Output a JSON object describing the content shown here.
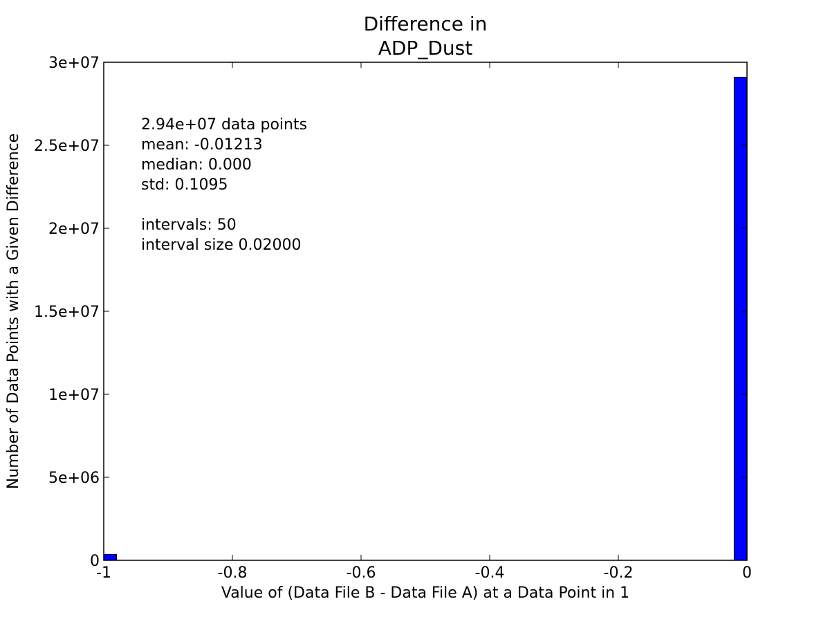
{
  "chart_data": {
    "type": "bar",
    "title_lines": [
      "Difference in",
      "ADP_Dust"
    ],
    "xlabel": "Value of (Data File B - Data File A) at a Data Point in 1",
    "ylabel": "Number of Data Points with a Given Difference",
    "xlim": [
      -1,
      0
    ],
    "ylim": [
      0,
      30000000
    ],
    "grid": false,
    "x_ticks": [
      {
        "value": -1,
        "label": "-1"
      },
      {
        "value": -0.8,
        "label": "-0.8"
      },
      {
        "value": -0.6,
        "label": "-0.6"
      },
      {
        "value": -0.4,
        "label": "-0.4"
      },
      {
        "value": -0.2,
        "label": "-0.2"
      },
      {
        "value": 0,
        "label": "0"
      }
    ],
    "y_ticks": [
      {
        "value": 0,
        "label": "0"
      },
      {
        "value": 5000000,
        "label": "5e+06"
      },
      {
        "value": 10000000,
        "label": "1e+07"
      },
      {
        "value": 15000000,
        "label": "1.5e+07"
      },
      {
        "value": 20000000,
        "label": "2e+07"
      },
      {
        "value": 25000000,
        "label": "2.5e+07"
      },
      {
        "value": 30000000,
        "label": "3e+07"
      }
    ],
    "bars": [
      {
        "x_start": -1.0,
        "x_end": -0.98,
        "value": 360000
      },
      {
        "x_start": -0.02,
        "x_end": 0.0,
        "value": 29100000
      }
    ],
    "bar_color": "#0000ff",
    "annotation_lines": [
      "2.94e+07 data points",
      "mean: -0.01213",
      "median: 0.000",
      "std: 0.1095",
      "",
      "intervals: 50",
      "interval size 0.02000"
    ]
  }
}
